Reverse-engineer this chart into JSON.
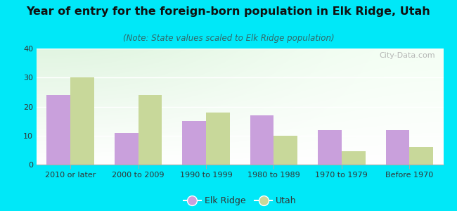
{
  "title": "Year of entry for the foreign-born population in Elk Ridge, Utah",
  "subtitle": "(Note: State values scaled to Elk Ridge population)",
  "categories": [
    "2010 or later",
    "2000 to 2009",
    "1990 to 1999",
    "1980 to 1989",
    "1970 to 1979",
    "Before 1970"
  ],
  "elk_ridge": [
    24,
    11,
    15,
    17,
    12,
    12
  ],
  "utah": [
    30,
    24,
    18,
    10,
    4.5,
    6
  ],
  "elk_ridge_color": "#c9a0dc",
  "utah_color": "#c8d89a",
  "background_outer": "#00e8f8",
  "ylim": [
    0,
    40
  ],
  "yticks": [
    0,
    10,
    20,
    30,
    40
  ],
  "bar_width": 0.35,
  "legend_labels": [
    "Elk Ridge",
    "Utah"
  ],
  "title_fontsize": 11.5,
  "subtitle_fontsize": 8.5,
  "tick_fontsize": 8,
  "legend_fontsize": 9,
  "watermark": "City-Data.com"
}
